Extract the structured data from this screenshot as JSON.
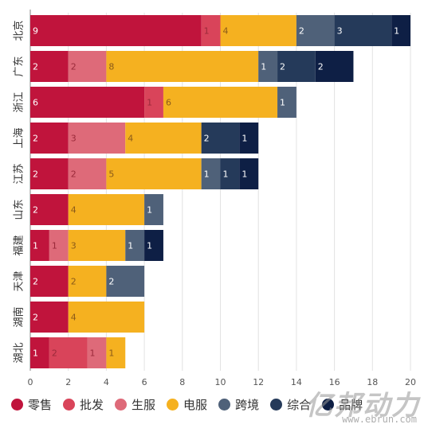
{
  "chart_data": {
    "type": "bar",
    "orientation": "horizontal",
    "stacked": true,
    "title": "",
    "xlabel": "",
    "ylabel": "",
    "xlim": [
      0,
      20
    ],
    "x_ticks": [
      0,
      2,
      4,
      6,
      8,
      10,
      12,
      14,
      16,
      18,
      20
    ],
    "grid": true,
    "legend_position": "bottom",
    "categories": [
      "北京",
      "广东",
      "浙江",
      "上海",
      "江苏",
      "山东",
      "福建",
      "天津",
      "湖南",
      "湖北"
    ],
    "series": [
      {
        "name": "零售",
        "color": "#c0143c",
        "values": [
          9,
          2,
          6,
          2,
          2,
          2,
          1,
          2,
          2,
          1
        ]
      },
      {
        "name": "批发",
        "color": "#d9445a",
        "values": [
          1,
          0,
          1,
          0,
          0,
          0,
          0,
          0,
          0,
          2
        ]
      },
      {
        "name": "生服",
        "color": "#de6a79",
        "values": [
          0,
          2,
          0,
          3,
          2,
          0,
          1,
          0,
          0,
          1
        ]
      },
      {
        "name": "电服",
        "color": "#f5b120",
        "values": [
          4,
          8,
          6,
          4,
          5,
          4,
          3,
          2,
          4,
          1
        ]
      },
      {
        "name": "跨境",
        "color": "#4f6179",
        "values": [
          2,
          1,
          1,
          0,
          1,
          1,
          1,
          2,
          0,
          0
        ]
      },
      {
        "name": "综合",
        "color": "#253a5a",
        "values": [
          3,
          2,
          0,
          2,
          1,
          0,
          0,
          0,
          0,
          0
        ]
      },
      {
        "name": "品牌",
        "color": "#0e1f45",
        "values": [
          1,
          2,
          0,
          1,
          1,
          0,
          1,
          0,
          0,
          0
        ]
      }
    ]
  },
  "legend_labels": [
    "零售",
    "批发",
    "生服",
    "电服",
    "跨境",
    "综合",
    "品牌"
  ],
  "watermark": {
    "logo": "亿邦动力",
    "url": "www.ebrun.com"
  }
}
